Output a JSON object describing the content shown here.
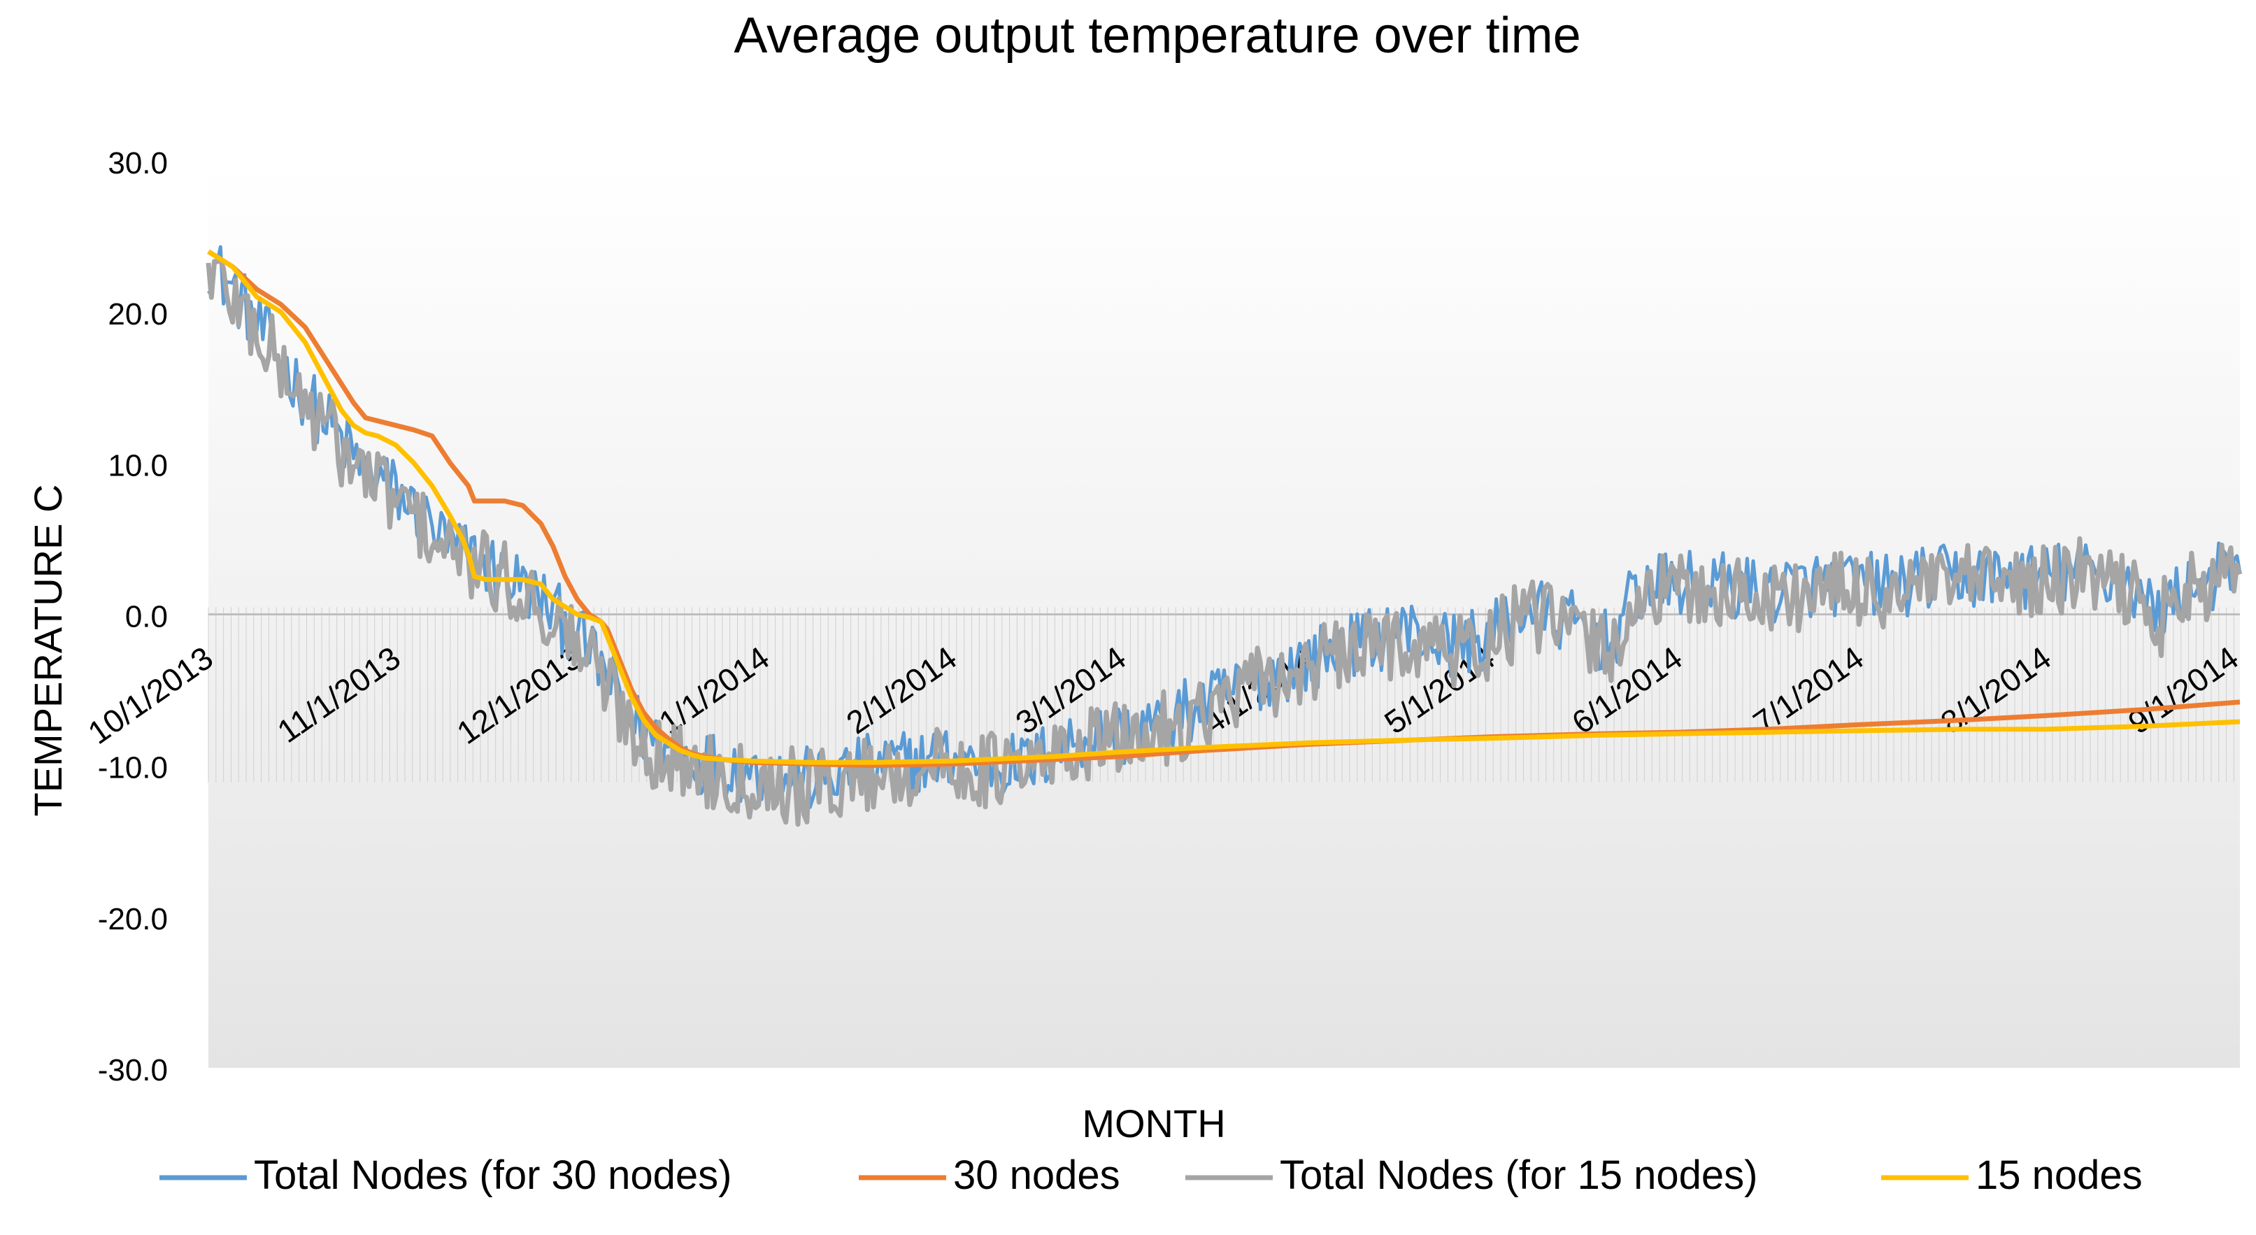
{
  "chart_data": {
    "type": "line",
    "title": "Average output temperature over time",
    "xlabel": "MONTH",
    "ylabel": "TEMPERATURE C",
    "ylim": [
      -30,
      30
    ],
    "yticks": [
      30,
      20,
      10,
      0,
      -10,
      -20,
      -30
    ],
    "ytick_labels": [
      "30.0",
      "20.0",
      "10.0",
      "0.0",
      "-10.0",
      "-20.0",
      "-30.0"
    ],
    "x_range_days": [
      0,
      336
    ],
    "month_ticks": [
      {
        "label": "10/1/2013",
        "day": 0
      },
      {
        "label": "11/1/2013",
        "day": 31
      },
      {
        "label": "12/1/2013",
        "day": 61
      },
      {
        "label": "1/1/2014",
        "day": 92
      },
      {
        "label": "2/1/2014",
        "day": 123
      },
      {
        "label": "3/1/2014",
        "day": 151
      },
      {
        "label": "4/1/2014",
        "day": 182
      },
      {
        "label": "5/1/2014",
        "day": 212
      },
      {
        "label": "6/1/2014",
        "day": 243
      },
      {
        "label": "7/1/2014",
        "day": 273
      },
      {
        "label": "8/1/2014",
        "day": 304
      },
      {
        "label": "9/1/2014",
        "day": 335
      }
    ],
    "legend_position": "bottom",
    "series": [
      {
        "name": "Total Nodes (for 30 nodes)",
        "color": "#5B9BD5",
        "style": "noisy-line",
        "x": [
          0,
          5,
          10,
          15,
          20,
          25,
          30,
          35,
          40,
          45,
          50,
          55,
          60,
          62,
          65,
          70,
          75,
          80,
          85,
          92,
          100,
          110,
          123,
          135,
          145,
          151,
          158,
          165,
          172,
          182,
          190,
          198,
          205,
          212,
          218,
          225,
          232,
          236,
          243,
          250,
          258,
          265,
          273,
          280,
          288,
          296,
          304,
          310,
          318,
          322,
          328,
          336
        ],
        "y": [
          23.5,
          21.0,
          18.0,
          15.0,
          12.5,
          10.0,
          8.5,
          6.5,
          4.5,
          3.5,
          2.5,
          1.0,
          -1.0,
          -2.0,
          -3.5,
          -7.0,
          -9.0,
          -9.5,
          -10.0,
          -10.5,
          -11.0,
          -10.0,
          -9.5,
          -10.0,
          -8.0,
          -8.0,
          -7.0,
          -6.0,
          -4.5,
          -3.0,
          -2.0,
          -1.0,
          -2.0,
          -1.5,
          0.5,
          -0.5,
          -2.0,
          1.5,
          2.0,
          2.0,
          1.5,
          2.0,
          2.0,
          2.0,
          2.5,
          2.5,
          2.5,
          3.0,
          2.0,
          0.0,
          2.0,
          3.0
        ]
      },
      {
        "name": "30 nodes",
        "color": "#ED7D31",
        "style": "smooth-line",
        "x": [
          0,
          4,
          8,
          12,
          16,
          20,
          24,
          26,
          28,
          31,
          34,
          37,
          40,
          43,
          44,
          46,
          49,
          52,
          55,
          57,
          59,
          61,
          63,
          65,
          66,
          67,
          68,
          70,
          72,
          74,
          76,
          78,
          80,
          82,
          85,
          90,
          100,
          110,
          123,
          140,
          151,
          165,
          182,
          200,
          212,
          230,
          243,
          258,
          273,
          290,
          304,
          320,
          336
        ],
        "y": [
          24.0,
          23.0,
          21.5,
          20.5,
          19.0,
          16.5,
          14.0,
          13.0,
          12.8,
          12.5,
          12.2,
          11.8,
          10.0,
          8.5,
          7.5,
          7.5,
          7.5,
          7.2,
          6.0,
          4.5,
          2.5,
          1.0,
          0.0,
          -0.5,
          -1.0,
          -2.0,
          -3.0,
          -5.0,
          -6.5,
          -7.5,
          -8.2,
          -8.8,
          -9.2,
          -9.4,
          -9.6,
          -9.8,
          -9.9,
          -10.0,
          -9.9,
          -9.6,
          -9.4,
          -9.0,
          -8.6,
          -8.3,
          -8.1,
          -7.9,
          -7.8,
          -7.6,
          -7.3,
          -7.0,
          -6.7,
          -6.3,
          -5.8
        ]
      },
      {
        "name": "Total Nodes (for 15 nodes)",
        "color": "#A5A5A5",
        "style": "noisy-band",
        "x": [
          0,
          5,
          10,
          15,
          20,
          25,
          30,
          35,
          40,
          45,
          50,
          55,
          60,
          62,
          65,
          70,
          75,
          80,
          85,
          92,
          100,
          110,
          123,
          135,
          145,
          151,
          158,
          165,
          172,
          182,
          190,
          198,
          205,
          212,
          218,
          225,
          232,
          236,
          243,
          250,
          258,
          265,
          273,
          280,
          288,
          296,
          304,
          310,
          318,
          322,
          328,
          336
        ],
        "y": [
          23.0,
          20.5,
          17.5,
          14.5,
          12.0,
          9.5,
          8.0,
          6.0,
          4.0,
          3.0,
          2.0,
          0.5,
          -1.5,
          -2.5,
          -4.0,
          -7.5,
          -9.5,
          -10.0,
          -10.5,
          -11.0,
          -11.5,
          -10.5,
          -10.0,
          -10.5,
          -8.5,
          -8.5,
          -7.5,
          -6.5,
          -5.0,
          -3.5,
          -2.5,
          -1.5,
          -2.5,
          -2.0,
          0.0,
          -1.0,
          -2.5,
          1.0,
          1.5,
          1.5,
          1.0,
          1.5,
          1.5,
          1.5,
          2.0,
          2.0,
          2.0,
          2.5,
          1.5,
          -0.5,
          1.5,
          2.5
        ]
      },
      {
        "name": "15 nodes",
        "color": "#FFC000",
        "style": "smooth-line",
        "x": [
          0,
          4,
          8,
          12,
          16,
          20,
          22,
          24,
          26,
          28,
          31,
          34,
          37,
          40,
          42,
          43,
          44,
          46,
          49,
          52,
          55,
          57,
          59,
          61,
          63,
          65,
          66,
          67,
          68,
          70,
          72,
          74,
          76,
          78,
          80,
          82,
          85,
          90,
          100,
          110,
          123,
          140,
          151,
          165,
          182,
          200,
          212,
          230,
          243,
          258,
          273,
          290,
          304,
          320,
          336
        ],
        "y": [
          24.0,
          23.0,
          21.0,
          20.0,
          18.0,
          15.0,
          13.5,
          12.5,
          12.0,
          11.8,
          11.2,
          10.0,
          8.5,
          6.5,
          5.0,
          4.0,
          2.5,
          2.3,
          2.3,
          2.3,
          2.0,
          1.0,
          0.5,
          0.0,
          -0.2,
          -0.5,
          -1.5,
          -2.5,
          -3.5,
          -5.5,
          -7.0,
          -8.0,
          -8.5,
          -9.0,
          -9.3,
          -9.5,
          -9.6,
          -9.7,
          -9.8,
          -9.8,
          -9.7,
          -9.4,
          -9.1,
          -8.8,
          -8.5,
          -8.3,
          -8.2,
          -8.0,
          -7.9,
          -7.8,
          -7.7,
          -7.6,
          -7.6,
          -7.4,
          -7.1
        ]
      }
    ]
  }
}
